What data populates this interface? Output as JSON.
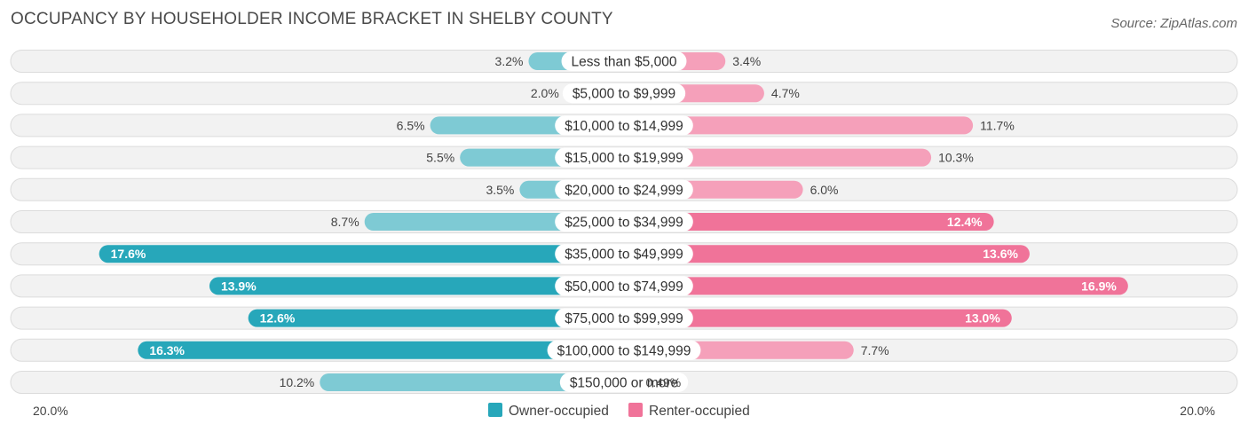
{
  "title": "OCCUPANCY BY HOUSEHOLDER INCOME BRACKET IN SHELBY COUNTY",
  "source": "Source: ZipAtlas.com",
  "colors": {
    "owner_light": "#7ecad4",
    "owner_dark": "#27a7ba",
    "renter_light": "#f5a0ba",
    "renter_dark": "#f07399"
  },
  "chart_data": {
    "type": "bar",
    "orientation": "horizontal-diverging",
    "categories": [
      "Less than $5,000",
      "$5,000 to $9,999",
      "$10,000 to $14,999",
      "$15,000 to $19,999",
      "$20,000 to $24,999",
      "$25,000 to $34,999",
      "$35,000 to $49,999",
      "$50,000 to $74,999",
      "$75,000 to $99,999",
      "$100,000 to $149,999",
      "$150,000 or more"
    ],
    "series": [
      {
        "name": "Owner-occupied",
        "values": [
          3.2,
          2.0,
          6.5,
          5.5,
          3.5,
          8.7,
          17.6,
          13.9,
          12.6,
          16.3,
          10.2
        ],
        "labels": [
          "3.2%",
          "2.0%",
          "6.5%",
          "5.5%",
          "3.5%",
          "8.7%",
          "17.6%",
          "13.9%",
          "12.6%",
          "16.3%",
          "10.2%"
        ]
      },
      {
        "name": "Renter-occupied",
        "values": [
          3.4,
          4.7,
          11.7,
          10.3,
          6.0,
          12.4,
          13.6,
          16.9,
          13.0,
          7.7,
          0.49
        ],
        "labels": [
          "3.4%",
          "4.7%",
          "11.7%",
          "10.3%",
          "6.0%",
          "12.4%",
          "13.6%",
          "16.9%",
          "13.0%",
          "7.7%",
          "0.49%"
        ]
      }
    ],
    "xlim": [
      -20,
      20
    ],
    "axis_labels": {
      "left": "20.0%",
      "right": "20.0%"
    },
    "legend_position": "bottom-center"
  }
}
